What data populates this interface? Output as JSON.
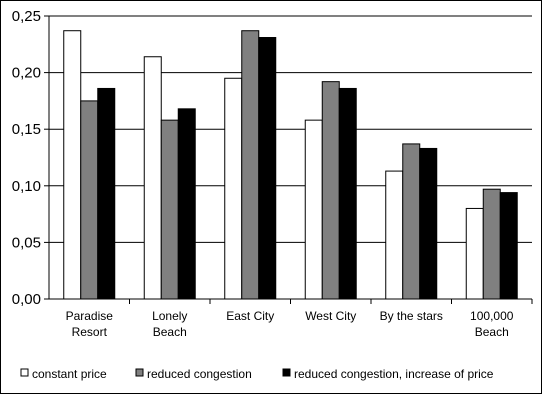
{
  "chart_data": {
    "type": "bar",
    "categories": [
      [
        "Paradise",
        "Resort"
      ],
      [
        "Lonely",
        "Beach"
      ],
      [
        "East City"
      ],
      [
        "West City"
      ],
      [
        "By the stars"
      ],
      [
        "100,000",
        "Beach"
      ]
    ],
    "series": [
      {
        "name": "constant price",
        "color": "#ffffff",
        "values": [
          0.237,
          0.214,
          0.195,
          0.158,
          0.113,
          0.08
        ]
      },
      {
        "name": "reduced congestion",
        "color": "#808080",
        "values": [
          0.175,
          0.158,
          0.237,
          0.192,
          0.137,
          0.097
        ]
      },
      {
        "name": "reduced congestion, increase of price",
        "color": "#000000",
        "values": [
          0.186,
          0.168,
          0.231,
          0.186,
          0.133,
          0.094
        ]
      }
    ],
    "ylim": [
      0,
      0.25
    ],
    "yticks": [
      "0,00",
      "0,05",
      "0,10",
      "0,15",
      "0,20",
      "0,25"
    ],
    "grid": true,
    "legend_position": "bottom"
  }
}
